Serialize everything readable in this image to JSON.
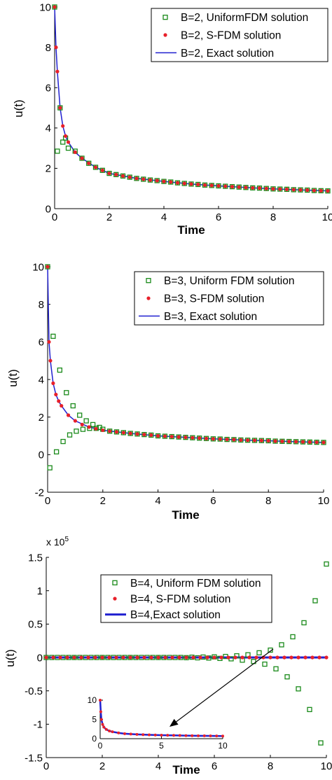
{
  "chart_data": [
    {
      "type": "line",
      "xlabel": "Time",
      "ylabel": "u(t)",
      "xlim": [
        0,
        10
      ],
      "ylim": [
        0,
        10
      ],
      "xticks": [
        0,
        2,
        4,
        6,
        8,
        10
      ],
      "yticks": [
        0,
        2,
        4,
        6,
        8,
        10
      ],
      "legend": "upper right",
      "series": [
        {
          "name": "B=2, UniformFDM solution",
          "color": "#1a8a1a",
          "marker": "square",
          "x": [
            0,
            0.1,
            0.2,
            0.3,
            0.4,
            0.5,
            0.75,
            1,
            1.25,
            1.5,
            1.75,
            2,
            2.25,
            2.5,
            2.75,
            3,
            3.25,
            3.5,
            3.75,
            4,
            4.25,
            4.5,
            4.75,
            5,
            5.25,
            5.5,
            5.75,
            6,
            6.25,
            6.5,
            6.75,
            7,
            7.25,
            7.5,
            7.75,
            8,
            8.25,
            8.5,
            8.75,
            9,
            9.25,
            9.5,
            9.75,
            10
          ],
          "values": [
            10,
            2.85,
            5,
            3.3,
            3.5,
            3.0,
            2.85,
            2.5,
            2.25,
            2.05,
            1.9,
            1.75,
            1.69,
            1.62,
            1.56,
            1.5,
            1.46,
            1.42,
            1.39,
            1.35,
            1.32,
            1.28,
            1.25,
            1.22,
            1.2,
            1.17,
            1.15,
            1.13,
            1.11,
            1.09,
            1.07,
            1.05,
            1.03,
            1.02,
            1.0,
            0.98,
            0.97,
            0.96,
            0.94,
            0.93,
            0.92,
            0.9,
            0.89,
            0.88
          ]
        },
        {
          "name": "B=2, S-FDM solution",
          "color": "#e8202a",
          "marker": "dot",
          "x": [
            0,
            0.05,
            0.1,
            0.2,
            0.3,
            0.4,
            0.5,
            0.75,
            1,
            1.25,
            1.5,
            1.75,
            2,
            2.25,
            2.5,
            2.75,
            3,
            3.25,
            3.5,
            3.75,
            4,
            4.25,
            4.5,
            4.75,
            5,
            5.25,
            5.5,
            5.75,
            6,
            6.25,
            6.5,
            6.75,
            7,
            7.25,
            7.5,
            7.75,
            8,
            8.25,
            8.5,
            8.75,
            9,
            9.25,
            9.5,
            9.75,
            10
          ],
          "values": [
            10,
            8,
            6.8,
            5,
            4.1,
            3.6,
            3.3,
            2.8,
            2.5,
            2.25,
            2.05,
            1.9,
            1.75,
            1.69,
            1.62,
            1.56,
            1.5,
            1.46,
            1.42,
            1.39,
            1.35,
            1.32,
            1.28,
            1.25,
            1.22,
            1.2,
            1.17,
            1.15,
            1.13,
            1.11,
            1.09,
            1.07,
            1.05,
            1.03,
            1.02,
            1.0,
            0.98,
            0.97,
            0.96,
            0.94,
            0.93,
            0.92,
            0.9,
            0.89,
            0.88
          ]
        },
        {
          "name": "B=2, Exact solution",
          "color": "#2020d0",
          "marker": "line",
          "line_width": 1.5,
          "x": [
            0,
            0.05,
            0.1,
            0.2,
            0.3,
            0.4,
            0.5,
            0.75,
            1,
            1.5,
            2,
            3,
            4,
            5,
            6,
            7,
            8,
            9,
            10
          ],
          "values": [
            10,
            8,
            6.8,
            5,
            4.1,
            3.6,
            3.3,
            2.8,
            2.5,
            2.05,
            1.75,
            1.5,
            1.35,
            1.22,
            1.13,
            1.05,
            0.98,
            0.93,
            0.88
          ]
        }
      ]
    },
    {
      "type": "line",
      "xlabel": "Time",
      "ylabel": "u(t)",
      "xlim": [
        0,
        10
      ],
      "ylim": [
        -2,
        10
      ],
      "xticks": [
        0,
        2,
        4,
        6,
        8,
        10
      ],
      "yticks": [
        -2,
        0,
        2,
        4,
        6,
        8,
        10
      ],
      "legend": "upper right",
      "series": [
        {
          "name": "B=3, Uniform FDM solution",
          "color": "#1a8a1a",
          "marker": "square",
          "x": [
            0,
            0.08,
            0.2,
            0.32,
            0.44,
            0.56,
            0.68,
            0.8,
            0.92,
            1.04,
            1.16,
            1.28,
            1.4,
            1.52,
            1.64,
            1.76,
            1.88,
            2,
            2.25,
            2.5,
            2.75,
            3,
            3.25,
            3.5,
            3.75,
            4,
            4.25,
            4.5,
            4.75,
            5,
            5.25,
            5.5,
            5.75,
            6,
            6.25,
            6.5,
            6.75,
            7,
            7.25,
            7.5,
            7.75,
            8,
            8.25,
            8.5,
            8.75,
            9,
            9.25,
            9.5,
            9.75,
            10
          ],
          "values": [
            10,
            -0.7,
            6.3,
            0.15,
            4.5,
            0.7,
            3.3,
            1.05,
            2.6,
            1.25,
            2.1,
            1.35,
            1.8,
            1.4,
            1.6,
            1.4,
            1.45,
            1.35,
            1.25,
            1.21,
            1.17,
            1.13,
            1.1,
            1.07,
            1.04,
            1.0,
            0.98,
            0.96,
            0.94,
            0.92,
            0.9,
            0.88,
            0.86,
            0.84,
            0.83,
            0.81,
            0.8,
            0.78,
            0.77,
            0.76,
            0.75,
            0.74,
            0.72,
            0.71,
            0.7,
            0.69,
            0.68,
            0.67,
            0.66,
            0.65
          ]
        },
        {
          "name": "B=3, S-FDM solution",
          "color": "#e8202a",
          "marker": "dot",
          "x": [
            0,
            0.05,
            0.1,
            0.2,
            0.3,
            0.4,
            0.5,
            0.75,
            1,
            1.25,
            1.5,
            1.75,
            2,
            2.25,
            2.5,
            2.75,
            3,
            3.25,
            3.5,
            3.75,
            4,
            4.25,
            4.5,
            4.75,
            5,
            5.25,
            5.5,
            5.75,
            6,
            6.25,
            6.5,
            6.75,
            7,
            7.25,
            7.5,
            7.75,
            8,
            8.25,
            8.5,
            8.75,
            9,
            9.25,
            9.5,
            9.75,
            10
          ],
          "values": [
            10,
            6,
            5,
            3.8,
            3.2,
            2.85,
            2.6,
            2.1,
            1.8,
            1.6,
            1.47,
            1.38,
            1.3,
            1.25,
            1.21,
            1.17,
            1.13,
            1.1,
            1.07,
            1.04,
            1.0,
            0.98,
            0.96,
            0.94,
            0.92,
            0.9,
            0.88,
            0.86,
            0.84,
            0.83,
            0.81,
            0.8,
            0.78,
            0.77,
            0.76,
            0.75,
            0.74,
            0.72,
            0.71,
            0.7,
            0.69,
            0.68,
            0.67,
            0.66,
            0.65
          ]
        },
        {
          "name": "B=3, Exact solution",
          "color": "#2020d0",
          "marker": "line",
          "line_width": 1.5,
          "x": [
            0,
            0.05,
            0.1,
            0.2,
            0.3,
            0.4,
            0.5,
            0.75,
            1,
            1.5,
            2,
            3,
            4,
            5,
            6,
            7,
            8,
            9,
            10
          ],
          "values": [
            10,
            6,
            5,
            3.8,
            3.2,
            2.85,
            2.6,
            2.1,
            1.8,
            1.47,
            1.3,
            1.13,
            1.0,
            0.92,
            0.84,
            0.78,
            0.74,
            0.69,
            0.65
          ]
        }
      ]
    },
    {
      "type": "line",
      "xlabel": "Time",
      "ylabel": "u(t)",
      "axis_multiplier": {
        "base": "x 10",
        "exponent": "5"
      },
      "xlim": [
        0,
        10
      ],
      "ylim": [
        -1.5,
        1.5
      ],
      "xticks": [
        0,
        2,
        4,
        6,
        8,
        10
      ],
      "yticks": [
        -1.5,
        -1,
        -0.5,
        0,
        0.5,
        1,
        1.5
      ],
      "legend": "upper center",
      "series": [
        {
          "name": "B=4, Uniform FDM solution",
          "color": "#1a8a1a",
          "marker": "square",
          "x": [
            0,
            0.2,
            0.4,
            0.6,
            0.8,
            1,
            1.2,
            1.4,
            1.6,
            1.8,
            2,
            2.2,
            2.4,
            2.6,
            2.8,
            3,
            3.2,
            3.4,
            3.6,
            3.8,
            4,
            4.2,
            4.4,
            4.6,
            4.8,
            5,
            5.2,
            5.4,
            5.6,
            5.8,
            6,
            6.2,
            6.4,
            6.6,
            6.8,
            7,
            7.2,
            7.4,
            7.6,
            7.8,
            8,
            8.2,
            8.4,
            8.6,
            8.8,
            9,
            9.2,
            9.4,
            9.6,
            9.8,
            10
          ],
          "values": [
            0,
            0,
            0,
            0,
            0,
            0,
            0,
            0,
            0,
            0,
            0,
            0,
            0,
            0,
            0,
            0,
            0,
            0,
            0,
            0,
            0,
            0,
            0,
            0,
            0,
            -0.003,
            0.004,
            -0.005,
            0.006,
            -0.008,
            0.009,
            -0.014,
            0.015,
            -0.02,
            0.025,
            -0.04,
            0.04,
            -0.06,
            0.07,
            -0.1,
            0.11,
            -0.17,
            0.19,
            -0.29,
            0.31,
            -0.47,
            0.52,
            -0.78,
            0.85,
            -1.28,
            1.4
          ]
        },
        {
          "name": "B=4, S-FDM solution",
          "color": "#e8202a",
          "marker": "dot",
          "x": [
            0,
            0.25,
            0.5,
            0.75,
            1,
            1.25,
            1.5,
            1.75,
            2,
            2.25,
            2.5,
            2.75,
            3,
            3.25,
            3.5,
            3.75,
            4,
            4.25,
            4.5,
            4.75,
            5,
            5.25,
            5.5,
            5.75,
            6,
            6.25,
            6.5,
            6.75,
            7,
            7.25,
            7.5,
            7.75,
            8,
            8.25,
            8.5,
            8.75,
            9,
            9.25,
            9.5,
            9.75,
            10
          ],
          "values": [
            0,
            0,
            0,
            0,
            0,
            0,
            0,
            0,
            0,
            0,
            0,
            0,
            0,
            0,
            0,
            0,
            0,
            0,
            0,
            0,
            0,
            0,
            0,
            0,
            0,
            0,
            0,
            0,
            0,
            0,
            0,
            0,
            0,
            0,
            0,
            0,
            0,
            0,
            0,
            0,
            0
          ]
        },
        {
          "name": "B=4,Exact solution",
          "color": "#2020d0",
          "marker": "line",
          "line_width": 3,
          "x": [
            0,
            10
          ],
          "values": [
            0,
            0
          ]
        }
      ],
      "inset": {
        "type": "line",
        "xlim": [
          0,
          10
        ],
        "ylim": [
          0,
          10
        ],
        "xticks": [
          0,
          5,
          10
        ],
        "yticks": [
          0,
          5,
          10
        ],
        "series": [
          {
            "color": "#2020d0",
            "marker": "line",
            "line_width": 2.5,
            "x": [
              0,
              0.05,
              0.1,
              0.2,
              0.3,
              0.5,
              0.75,
              1,
              1.5,
              2,
              3,
              4,
              5,
              6,
              7,
              8,
              9,
              10
            ],
            "values": [
              10,
              7,
              5,
              3.7,
              3,
              2.4,
              2.0,
              1.8,
              1.5,
              1.3,
              1.12,
              1.0,
              0.92,
              0.86,
              0.8,
              0.76,
              0.72,
              0.68
            ]
          },
          {
            "color": "#e8202a",
            "marker": "dot",
            "x": [
              0,
              0.05,
              0.1,
              0.2,
              0.3,
              0.5,
              0.75,
              1,
              1.5,
              2,
              2.5,
              3,
              3.5,
              4,
              4.5,
              5,
              5.5,
              6,
              6.5,
              7,
              7.5,
              8,
              8.5,
              9,
              9.5,
              10
            ],
            "values": [
              10,
              7,
              5,
              3.7,
              3,
              2.4,
              2.0,
              1.8,
              1.5,
              1.3,
              1.2,
              1.12,
              1.05,
              1.0,
              0.96,
              0.92,
              0.89,
              0.86,
              0.83,
              0.8,
              0.78,
              0.76,
              0.74,
              0.72,
              0.7,
              0.68
            ]
          }
        ]
      }
    }
  ]
}
